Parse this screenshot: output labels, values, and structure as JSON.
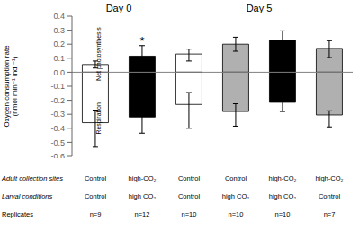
{
  "chart_data": [
    {
      "type": "bar",
      "title": "Day 0",
      "ylabel": "Oxygen consumption rate\n(nmol min⁻¹ ind.⁻¹)",
      "ylim": [
        -0.6,
        0.4
      ],
      "yticks": [
        -0.6,
        -0.5,
        -0.4,
        -0.3,
        -0.2,
        -0.1,
        {
          "value": 0,
          "label": "0.0"
        },
        0.1,
        0.2,
        0.3,
        0.4
      ],
      "tick_labels": "y",
      "grid": false,
      "colors": [
        "white",
        "black"
      ],
      "series": [
        {
          "values": [
            0.055,
            0.115
          ],
          "error_low": [
            0.025,
            0.04
          ],
          "error_high": [
            0.025,
            0.075
          ],
          "labels": [
            null,
            "*"
          ]
        },
        {
          "values": [
            -0.36,
            -0.32
          ],
          "error_low": [
            0.175,
            0.115
          ],
          "error_high": [
            0.09,
            0.07
          ]
        }
      ],
      "annotations": [
        "Net photosynthesis",
        "Respiration"
      ],
      "table": {
        "row_labels": [
          "Adult collection sites",
          "Larval conditions",
          "Replicates"
        ],
        "rows": [
          [
            "Control",
            "high-CO₂"
          ],
          [
            "Control",
            "high CO₂"
          ],
          [
            "n=9",
            "n=12"
          ]
        ]
      }
    },
    {
      "type": "bar",
      "title": "Day 5",
      "ylim": [
        -0.6,
        0.4
      ],
      "yticks": [
        -0.6,
        -0.5,
        -0.4,
        -0.3,
        -0.2,
        -0.1,
        {
          "value": 0,
          "label": "0.0"
        },
        0.1,
        0.2,
        0.3,
        0.4
      ],
      "tick_labels": false,
      "grid": false,
      "colors": [
        "white",
        "#b0b0b0",
        "black",
        "#b0b0b0"
      ],
      "series": [
        {
          "values": [
            0.13,
            0.2,
            0.23,
            0.17
          ],
          "error_low": [
            0.05,
            0.05,
            0.065,
            0.065
          ],
          "error_high": [
            0.035,
            0.05,
            0.065,
            0.055
          ]
        },
        {
          "values": [
            -0.23,
            -0.28,
            -0.215,
            -0.305
          ],
          "error_low": [
            0.17,
            0.105,
            0.065,
            0.085
          ],
          "error_high": [
            0.085,
            0.055,
            0.055,
            0.03
          ]
        }
      ],
      "table": {
        "rows": [
          [
            "Control",
            "Control",
            "high-CO₂",
            "high-CO₂"
          ],
          [
            "Control",
            "high CO₂",
            "high CO₂",
            "Control"
          ],
          [
            "n=10",
            "n=10",
            "n=10",
            "n=7"
          ]
        ]
      }
    }
  ]
}
